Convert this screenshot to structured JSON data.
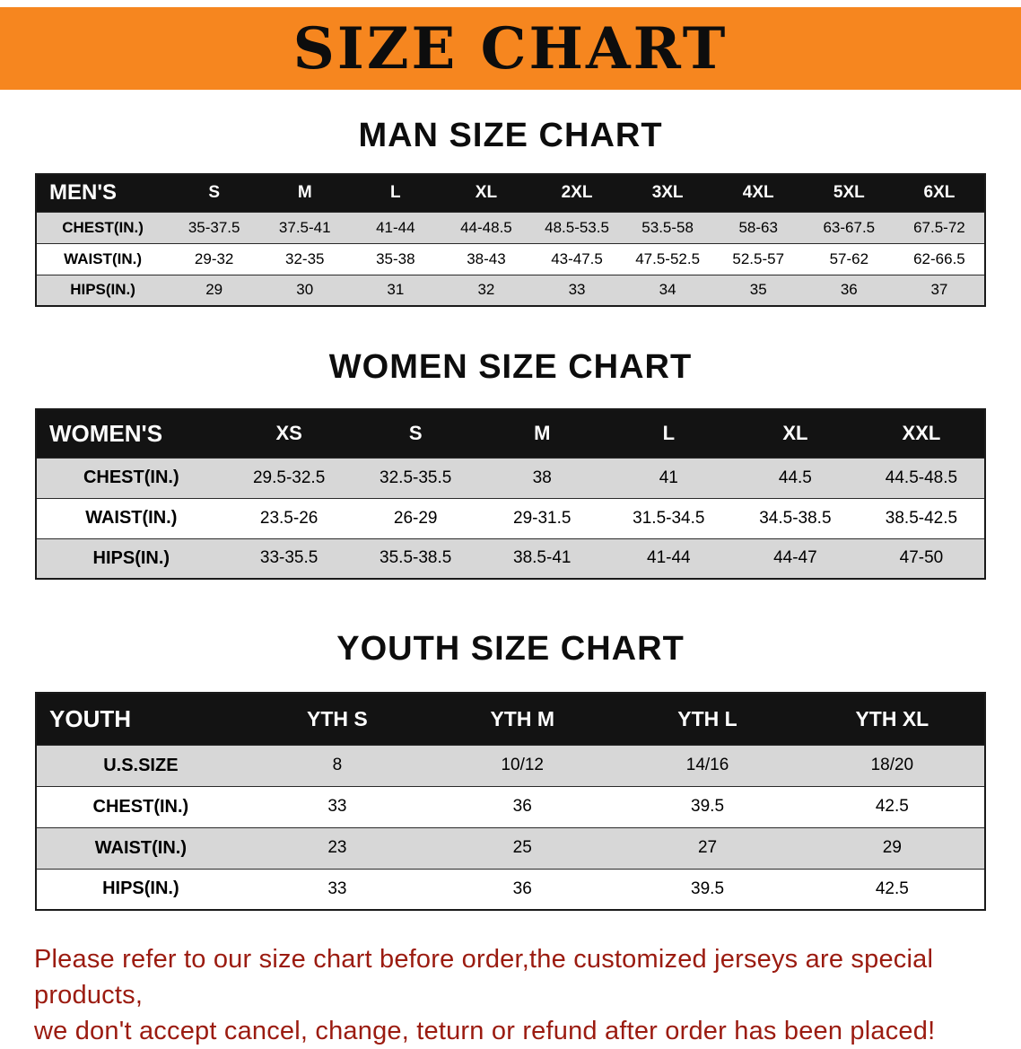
{
  "banner": {
    "title": "SIZE CHART"
  },
  "colors": {
    "banner_bg": "#F6861F",
    "table_header_bg": "#131313",
    "row_shade": "#d7d7d7",
    "disclaimer_text": "#9b1b10"
  },
  "sections": {
    "men": {
      "heading": "MAN SIZE CHART",
      "header": [
        "MEN'S",
        "S",
        "M",
        "L",
        "XL",
        "2XL",
        "3XL",
        "4XL",
        "5XL",
        "6XL"
      ],
      "rows": [
        {
          "label": "CHEST(IN.)",
          "values": [
            "35-37.5",
            "37.5-41",
            "41-44",
            "44-48.5",
            "48.5-53.5",
            "53.5-58",
            "58-63",
            "63-67.5",
            "67.5-72"
          ]
        },
        {
          "label": "WAIST(IN.)",
          "values": [
            "29-32",
            "32-35",
            "35-38",
            "38-43",
            "43-47.5",
            "47.5-52.5",
            "52.5-57",
            "57-62",
            "62-66.5"
          ]
        },
        {
          "label": "HIPS(IN.)",
          "values": [
            "29",
            "30",
            "31",
            "32",
            "33",
            "34",
            "35",
            "36",
            "37"
          ]
        }
      ]
    },
    "women": {
      "heading": "WOMEN SIZE CHART",
      "header": [
        "WOMEN'S",
        "XS",
        "S",
        "M",
        "L",
        "XL",
        "XXL"
      ],
      "rows": [
        {
          "label": "CHEST(IN.)",
          "values": [
            "29.5-32.5",
            "32.5-35.5",
            "38",
            "41",
            "44.5",
            "44.5-48.5"
          ]
        },
        {
          "label": "WAIST(IN.)",
          "values": [
            "23.5-26",
            "26-29",
            "29-31.5",
            "31.5-34.5",
            "34.5-38.5",
            "38.5-42.5"
          ]
        },
        {
          "label": "HIPS(IN.)",
          "values": [
            "33-35.5",
            "35.5-38.5",
            "38.5-41",
            "41-44",
            "44-47",
            "47-50"
          ]
        }
      ]
    },
    "youth": {
      "heading": "YOUTH SIZE CHART",
      "header": [
        "YOUTH",
        "YTH S",
        "YTH M",
        "YTH L",
        "YTH XL"
      ],
      "rows": [
        {
          "label": "U.S.SIZE",
          "values": [
            "8",
            "10/12",
            "14/16",
            "18/20"
          ]
        },
        {
          "label": "CHEST(IN.)",
          "values": [
            "33",
            "36",
            "39.5",
            "42.5"
          ]
        },
        {
          "label": "WAIST(IN.)",
          "values": [
            "23",
            "25",
            "27",
            "29"
          ]
        },
        {
          "label": "HIPS(IN.)",
          "values": [
            "33",
            "36",
            "39.5",
            "42.5"
          ]
        }
      ]
    }
  },
  "footer": {
    "line1": "Please refer to our size chart before order,the customized jerseys are special products,",
    "line2": "we don't accept cancel, change, teturn or refund after order has been placed!"
  }
}
